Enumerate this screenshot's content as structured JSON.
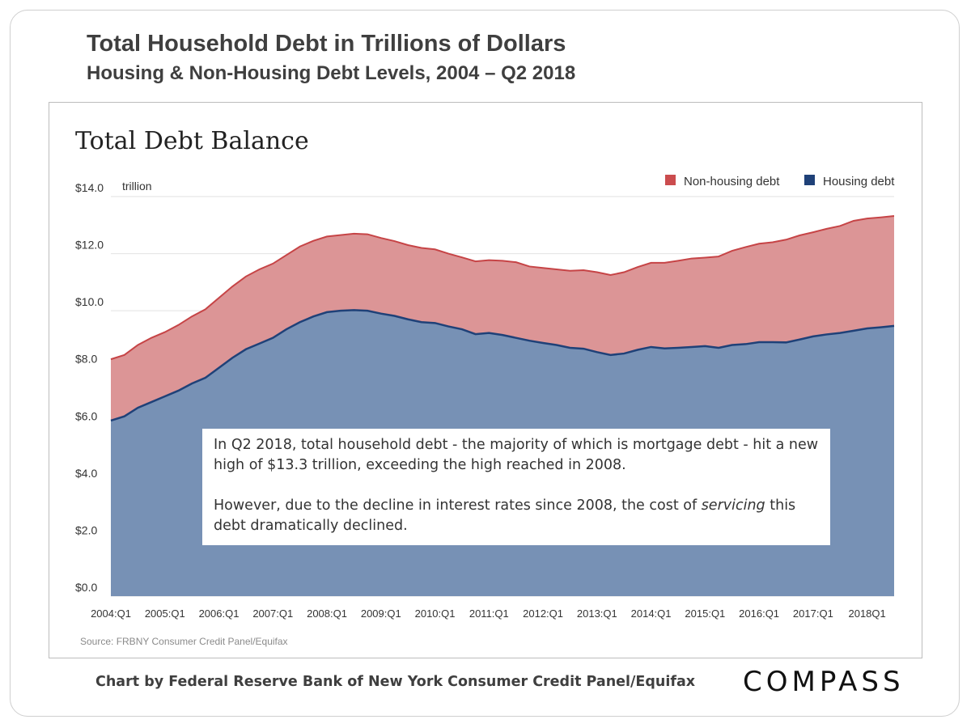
{
  "slide": {
    "title": "Total Household Debt in Trillions of Dollars",
    "subtitle": "Housing & Non-Housing Debt Levels, 2004 – Q2 2018",
    "footer": "Chart by Federal Reserve Bank of New York Consumer Credit Panel/Equifax",
    "logo": "COMPASS",
    "callout": {
      "line1": "In Q2 2018, total household debt - the majority of which is mortgage debt - hit a new high of $13.3 trillion, exceeding the high reached in 2008.",
      "line2_italic": "servicing",
      "line2_pre": "However, due to the decline in interest rates since 2008, the cost of ",
      "line2_post": " this debt dramatically declined."
    }
  },
  "chart_data": {
    "type": "area",
    "stacked": true,
    "title": "Total Debt Balance",
    "unit_label": "trillion",
    "source": "Source: FRBNY Consumer Credit Panel/Equifax",
    "ylim": [
      0,
      14
    ],
    "yticks": [
      "$0.0",
      "$2.0",
      "$4.0",
      "$6.0",
      "$8.0",
      "$10.0",
      "$12.0",
      "$14.0"
    ],
    "xticks": [
      "2004:Q1",
      "2005:Q1",
      "2006:Q1",
      "2007:Q1",
      "2008:Q1",
      "2009:Q1",
      "2010:Q1",
      "2011:Q1",
      "2012:Q1",
      "2013:Q1",
      "2014:Q1",
      "2015:Q1",
      "2016:Q1",
      "2017:Q1",
      "2018Q1"
    ],
    "legend_position": "top-right",
    "grid": true,
    "colors": {
      "housing_fill": "#7791b5",
      "housing_line": "#1f4178",
      "nonhousing_fill": "#dc9596",
      "nonhousing_line": "#c64446",
      "legend_nonhousing": "#cb4c4e",
      "legend_housing": "#1f4178"
    },
    "series": [
      {
        "name": "Housing debt",
        "values": [
          6.15,
          6.3,
          6.6,
          6.8,
          7.0,
          7.2,
          7.45,
          7.65,
          8.0,
          8.35,
          8.65,
          8.85,
          9.05,
          9.35,
          9.6,
          9.8,
          9.95,
          10.0,
          10.02,
          10.0,
          9.9,
          9.82,
          9.7,
          9.6,
          9.57,
          9.45,
          9.35,
          9.18,
          9.22,
          9.15,
          9.05,
          8.95,
          8.87,
          8.8,
          8.7,
          8.67,
          8.55,
          8.45,
          8.5,
          8.63,
          8.73,
          8.68,
          8.7,
          8.73,
          8.76,
          8.7,
          8.8,
          8.83,
          8.9,
          8.9,
          8.89,
          8.99,
          9.1,
          9.17,
          9.22,
          9.3,
          9.38,
          9.42,
          9.47
        ]
      },
      {
        "name": "Non-housing debt",
        "values": [
          2.15,
          2.15,
          2.2,
          2.25,
          2.25,
          2.3,
          2.35,
          2.4,
          2.45,
          2.5,
          2.55,
          2.6,
          2.6,
          2.6,
          2.65,
          2.65,
          2.65,
          2.65,
          2.68,
          2.68,
          2.65,
          2.62,
          2.6,
          2.6,
          2.58,
          2.55,
          2.52,
          2.55,
          2.55,
          2.6,
          2.65,
          2.6,
          2.63,
          2.65,
          2.7,
          2.75,
          2.8,
          2.8,
          2.85,
          2.9,
          2.95,
          3.0,
          3.05,
          3.1,
          3.1,
          3.2,
          3.3,
          3.4,
          3.45,
          3.5,
          3.6,
          3.65,
          3.65,
          3.7,
          3.75,
          3.85,
          3.85,
          3.85,
          3.85
        ]
      }
    ],
    "total_last": 13.3
  }
}
